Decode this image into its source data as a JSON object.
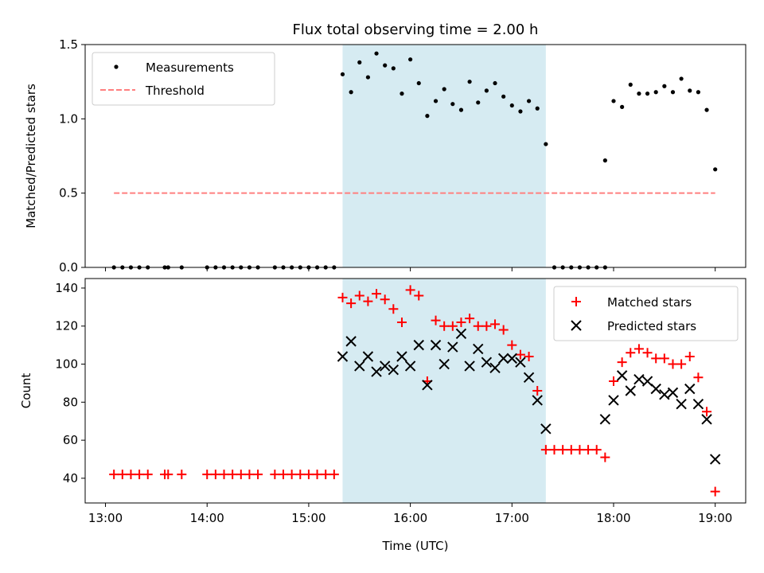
{
  "chart_data": [
    {
      "type": "scatter",
      "title": "Flux total observing time = 2.00 h",
      "xlabel": "",
      "ylabel": "Matched/Predicted stars",
      "xlim": [
        "12:48",
        "19:18"
      ],
      "ylim": [
        0,
        1.5
      ],
      "y_ticks": [
        0.0,
        0.5,
        1.0,
        1.5
      ],
      "y_tick_labels": [
        "0.0",
        "0.5",
        "1.0",
        "1.5"
      ],
      "shaded_region": {
        "start": "15:20",
        "end": "17:20",
        "color": "#add8e6"
      },
      "legend": {
        "position": "top-left",
        "entries": [
          "Measurements",
          "Threshold"
        ]
      },
      "series": [
        {
          "name": "Measurements",
          "marker": "dot",
          "color": "#000000",
          "points": [
            [
              "13:05",
              0
            ],
            [
              "13:10",
              0
            ],
            [
              "13:15",
              0
            ],
            [
              "13:20",
              0
            ],
            [
              "13:25",
              0
            ],
            [
              "13:35",
              0
            ],
            [
              "13:37",
              0
            ],
            [
              "13:45",
              0
            ],
            [
              "14:00",
              0
            ],
            [
              "14:05",
              0
            ],
            [
              "14:10",
              0
            ],
            [
              "14:15",
              0
            ],
            [
              "14:20",
              0
            ],
            [
              "14:25",
              0
            ],
            [
              "14:30",
              0
            ],
            [
              "14:40",
              0
            ],
            [
              "14:45",
              0
            ],
            [
              "14:50",
              0
            ],
            [
              "14:55",
              0
            ],
            [
              "15:00",
              0
            ],
            [
              "15:05",
              0
            ],
            [
              "15:10",
              0
            ],
            [
              "15:15",
              0
            ],
            [
              "15:20",
              1.3
            ],
            [
              "15:25",
              1.18
            ],
            [
              "15:30",
              1.38
            ],
            [
              "15:35",
              1.28
            ],
            [
              "15:40",
              1.44
            ],
            [
              "15:45",
              1.36
            ],
            [
              "15:50",
              1.34
            ],
            [
              "15:55",
              1.17
            ],
            [
              "16:00",
              1.4
            ],
            [
              "16:05",
              1.24
            ],
            [
              "16:10",
              1.02
            ],
            [
              "16:15",
              1.12
            ],
            [
              "16:20",
              1.2
            ],
            [
              "16:25",
              1.1
            ],
            [
              "16:30",
              1.06
            ],
            [
              "16:35",
              1.25
            ],
            [
              "16:40",
              1.11
            ],
            [
              "16:45",
              1.19
            ],
            [
              "16:50",
              1.24
            ],
            [
              "16:55",
              1.15
            ],
            [
              "17:00",
              1.09
            ],
            [
              "17:05",
              1.05
            ],
            [
              "17:10",
              1.12
            ],
            [
              "17:15",
              1.07
            ],
            [
              "17:20",
              0.83
            ],
            [
              "17:25",
              0
            ],
            [
              "17:30",
              0
            ],
            [
              "17:35",
              0
            ],
            [
              "17:40",
              0
            ],
            [
              "17:45",
              0
            ],
            [
              "17:50",
              0
            ],
            [
              "17:55",
              0
            ],
            [
              "17:55",
              0.72
            ],
            [
              "18:00",
              1.12
            ],
            [
              "18:05",
              1.08
            ],
            [
              "18:10",
              1.23
            ],
            [
              "18:15",
              1.17
            ],
            [
              "18:20",
              1.17
            ],
            [
              "18:25",
              1.18
            ],
            [
              "18:30",
              1.22
            ],
            [
              "18:35",
              1.18
            ],
            [
              "18:40",
              1.27
            ],
            [
              "18:45",
              1.19
            ],
            [
              "18:50",
              1.18
            ],
            [
              "18:55",
              1.06
            ],
            [
              "19:00",
              0.66
            ]
          ]
        },
        {
          "name": "Threshold",
          "style": "dashed",
          "color": "#ff7f7f",
          "points": [
            [
              "13:05",
              0.5
            ],
            [
              "19:00",
              0.5
            ]
          ]
        }
      ]
    },
    {
      "type": "scatter",
      "title": "",
      "xlabel": "Time (UTC)",
      "ylabel": "Count",
      "xlim": [
        "12:48",
        "19:18"
      ],
      "ylim": [
        27,
        145
      ],
      "x_ticks": [
        "13:00",
        "14:00",
        "15:00",
        "16:00",
        "17:00",
        "18:00",
        "19:00"
      ],
      "y_ticks": [
        40,
        60,
        80,
        100,
        120,
        140
      ],
      "y_tick_labels": [
        "40",
        "60",
        "80",
        "100",
        "120",
        "140"
      ],
      "shaded_region": {
        "start": "15:20",
        "end": "17:20",
        "color": "#add8e6"
      },
      "legend": {
        "position": "top-right",
        "entries": [
          "Matched stars",
          "Predicted stars"
        ]
      },
      "series": [
        {
          "name": "Matched stars",
          "marker": "plus",
          "color": "#ff0000",
          "points": [
            [
              "13:05",
              42
            ],
            [
              "13:10",
              42
            ],
            [
              "13:15",
              42
            ],
            [
              "13:20",
              42
            ],
            [
              "13:25",
              42
            ],
            [
              "13:35",
              42
            ],
            [
              "13:37",
              42
            ],
            [
              "13:45",
              42
            ],
            [
              "14:00",
              42
            ],
            [
              "14:05",
              42
            ],
            [
              "14:10",
              42
            ],
            [
              "14:15",
              42
            ],
            [
              "14:20",
              42
            ],
            [
              "14:25",
              42
            ],
            [
              "14:30",
              42
            ],
            [
              "14:40",
              42
            ],
            [
              "14:45",
              42
            ],
            [
              "14:50",
              42
            ],
            [
              "14:55",
              42
            ],
            [
              "15:00",
              42
            ],
            [
              "15:05",
              42
            ],
            [
              "15:10",
              42
            ],
            [
              "15:15",
              42
            ],
            [
              "15:20",
              135
            ],
            [
              "15:25",
              132
            ],
            [
              "15:30",
              136
            ],
            [
              "15:35",
              133
            ],
            [
              "15:40",
              137
            ],
            [
              "15:45",
              134
            ],
            [
              "15:50",
              129
            ],
            [
              "15:55",
              122
            ],
            [
              "16:00",
              139
            ],
            [
              "16:05",
              136
            ],
            [
              "16:10",
              91
            ],
            [
              "16:15",
              123
            ],
            [
              "16:20",
              120
            ],
            [
              "16:25",
              120
            ],
            [
              "16:30",
              122
            ],
            [
              "16:35",
              124
            ],
            [
              "16:40",
              120
            ],
            [
              "16:45",
              120
            ],
            [
              "16:50",
              121
            ],
            [
              "16:55",
              118
            ],
            [
              "17:00",
              110
            ],
            [
              "17:05",
              105
            ],
            [
              "17:10",
              104
            ],
            [
              "17:15",
              86
            ],
            [
              "17:20",
              55
            ],
            [
              "17:25",
              55
            ],
            [
              "17:30",
              55
            ],
            [
              "17:35",
              55
            ],
            [
              "17:40",
              55
            ],
            [
              "17:45",
              55
            ],
            [
              "17:50",
              55
            ],
            [
              "17:55",
              51
            ],
            [
              "18:00",
              91
            ],
            [
              "18:05",
              101
            ],
            [
              "18:10",
              106
            ],
            [
              "18:15",
              108
            ],
            [
              "18:20",
              106
            ],
            [
              "18:25",
              103
            ],
            [
              "18:30",
              103
            ],
            [
              "18:35",
              100
            ],
            [
              "18:40",
              100
            ],
            [
              "18:45",
              104
            ],
            [
              "18:50",
              93
            ],
            [
              "18:55",
              75
            ],
            [
              "19:00",
              33
            ]
          ]
        },
        {
          "name": "Predicted stars",
          "marker": "x",
          "color": "#000000",
          "points": [
            [
              "15:20",
              104
            ],
            [
              "15:25",
              112
            ],
            [
              "15:30",
              99
            ],
            [
              "15:35",
              104
            ],
            [
              "15:40",
              96
            ],
            [
              "15:45",
              99
            ],
            [
              "15:50",
              97
            ],
            [
              "15:55",
              104
            ],
            [
              "16:00",
              99
            ],
            [
              "16:05",
              110
            ],
            [
              "16:10",
              89
            ],
            [
              "16:15",
              110
            ],
            [
              "16:20",
              100
            ],
            [
              "16:25",
              109
            ],
            [
              "16:30",
              116
            ],
            [
              "16:35",
              99
            ],
            [
              "16:40",
              108
            ],
            [
              "16:45",
              101
            ],
            [
              "16:50",
              98
            ],
            [
              "16:55",
              103
            ],
            [
              "17:00",
              103
            ],
            [
              "17:05",
              101
            ],
            [
              "17:10",
              93
            ],
            [
              "17:15",
              81
            ],
            [
              "17:20",
              66
            ],
            [
              "17:55",
              71
            ],
            [
              "18:00",
              81
            ],
            [
              "18:05",
              94
            ],
            [
              "18:10",
              86
            ],
            [
              "18:15",
              92
            ],
            [
              "18:20",
              91
            ],
            [
              "18:25",
              87
            ],
            [
              "18:30",
              84
            ],
            [
              "18:35",
              85
            ],
            [
              "18:40",
              79
            ],
            [
              "18:45",
              87
            ],
            [
              "18:50",
              79
            ],
            [
              "18:55",
              71
            ],
            [
              "19:00",
              50
            ]
          ]
        }
      ]
    }
  ]
}
